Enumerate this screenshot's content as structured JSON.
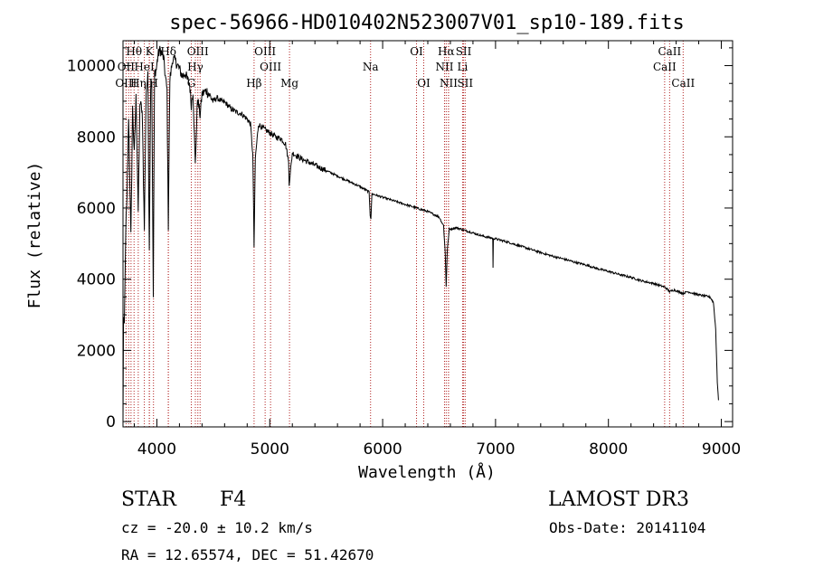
{
  "chart_data": {
    "type": "line",
    "title": "spec-56966-HD010402N523007V01_sp10-189.fits",
    "xlabel": "Wavelength (Å)",
    "ylabel": "Flux (relative)",
    "xlim": [
      3700,
      9100
    ],
    "ylim": [
      -150,
      10700
    ],
    "xticks": [
      4000,
      5000,
      6000,
      7000,
      8000,
      9000
    ],
    "yticks": [
      0,
      2000,
      4000,
      6000,
      8000,
      10000
    ],
    "grid": false,
    "series": [
      {
        "name": "spectrum",
        "anchors": [
          [
            3700,
            0
          ],
          [
            3705,
            3000
          ],
          [
            3712,
            2600
          ],
          [
            3725,
            5500
          ],
          [
            3735,
            6200
          ],
          [
            3750,
            8600
          ],
          [
            3770,
            5200
          ],
          [
            3785,
            8800
          ],
          [
            3800,
            7500
          ],
          [
            3815,
            9100
          ],
          [
            3835,
            5900
          ],
          [
            3850,
            9000
          ],
          [
            3870,
            8700
          ],
          [
            3889,
            5500
          ],
          [
            3905,
            9300
          ],
          [
            3920,
            9700
          ],
          [
            3933,
            4900
          ],
          [
            3945,
            9500
          ],
          [
            3955,
            9600
          ],
          [
            3968,
            3500
          ],
          [
            3980,
            9800
          ],
          [
            3995,
            9900
          ],
          [
            4010,
            10300
          ],
          [
            4030,
            10450
          ],
          [
            4060,
            10200
          ],
          [
            4075,
            9700
          ],
          [
            4090,
            9300
          ],
          [
            4101,
            5500
          ],
          [
            4115,
            9600
          ],
          [
            4140,
            10200
          ],
          [
            4170,
            10100
          ],
          [
            4200,
            9900
          ],
          [
            4226,
            9700
          ],
          [
            4250,
            9800
          ],
          [
            4270,
            9600
          ],
          [
            4290,
            9500
          ],
          [
            4305,
            8900
          ],
          [
            4320,
            9300
          ],
          [
            4340,
            7200
          ],
          [
            4360,
            9100
          ],
          [
            4383,
            8600
          ],
          [
            4400,
            9200
          ],
          [
            4440,
            9300
          ],
          [
            4480,
            9100
          ],
          [
            4500,
            9000
          ],
          [
            4530,
            9100
          ],
          [
            4570,
            9000
          ],
          [
            4610,
            8950
          ],
          [
            4650,
            8800
          ],
          [
            4700,
            8700
          ],
          [
            4750,
            8650
          ],
          [
            4800,
            8500
          ],
          [
            4830,
            8350
          ],
          [
            4850,
            7500
          ],
          [
            4861,
            4900
          ],
          [
            4872,
            7400
          ],
          [
            4900,
            8350
          ],
          [
            4920,
            8300
          ],
          [
            4957,
            8200
          ],
          [
            5007,
            8100
          ],
          [
            5050,
            8000
          ],
          [
            5100,
            7950
          ],
          [
            5140,
            7800
          ],
          [
            5167,
            7300
          ],
          [
            5172,
            6700
          ],
          [
            5183,
            7000
          ],
          [
            5200,
            7550
          ],
          [
            5270,
            7400
          ],
          [
            5300,
            7350
          ],
          [
            5400,
            7200
          ],
          [
            5500,
            7050
          ],
          [
            5600,
            6900
          ],
          [
            5700,
            6750
          ],
          [
            5800,
            6600
          ],
          [
            5880,
            6450
          ],
          [
            5890,
            5800
          ],
          [
            5896,
            5700
          ],
          [
            5905,
            6400
          ],
          [
            6000,
            6300
          ],
          [
            6100,
            6200
          ],
          [
            6200,
            6100
          ],
          [
            6300,
            6000
          ],
          [
            6400,
            5900
          ],
          [
            6500,
            5750
          ],
          [
            6540,
            5500
          ],
          [
            6555,
            4700
          ],
          [
            6563,
            3800
          ],
          [
            6572,
            4800
          ],
          [
            6590,
            5400
          ],
          [
            6650,
            5450
          ],
          [
            6700,
            5400
          ],
          [
            6750,
            5350
          ],
          [
            6800,
            5300
          ],
          [
            6900,
            5200
          ],
          [
            6975,
            5150
          ],
          [
            6978,
            4300
          ],
          [
            6981,
            5150
          ],
          [
            7100,
            5050
          ],
          [
            7200,
            4950
          ],
          [
            7300,
            4850
          ],
          [
            7400,
            4750
          ],
          [
            7500,
            4650
          ],
          [
            7600,
            4570
          ],
          [
            7700,
            4480
          ],
          [
            7800,
            4400
          ],
          [
            7900,
            4300
          ],
          [
            8000,
            4220
          ],
          [
            8100,
            4130
          ],
          [
            8200,
            4050
          ],
          [
            8300,
            3950
          ],
          [
            8400,
            3880
          ],
          [
            8498,
            3780
          ],
          [
            8510,
            3750
          ],
          [
            8542,
            3650
          ],
          [
            8580,
            3700
          ],
          [
            8662,
            3600
          ],
          [
            8700,
            3650
          ],
          [
            8800,
            3560
          ],
          [
            8900,
            3500
          ],
          [
            8930,
            3350
          ],
          [
            8950,
            2600
          ],
          [
            8965,
            1100
          ],
          [
            8975,
            600
          ]
        ]
      }
    ],
    "line_markers": [
      {
        "label": "Hθ",
        "wavelength": 3798,
        "row": 1
      },
      {
        "label": "OII",
        "wavelength": 3727,
        "row": 2
      },
      {
        "label": "OIII",
        "wavelength": 3727,
        "row": 3
      },
      {
        "label": "K",
        "wavelength": 3934,
        "row": 1
      },
      {
        "label": "Hδ",
        "wavelength": 4102,
        "row": 1
      },
      {
        "label": "HeI",
        "wavelength": 3889,
        "row": 2
      },
      {
        "label": "Hη",
        "wavelength": 3835,
        "row": 3
      },
      {
        "label": "H",
        "wavelength": 3970,
        "row": 3
      },
      {
        "label": "OIII",
        "wavelength": 4363,
        "row": 1
      },
      {
        "label": "Hγ",
        "wavelength": 4341,
        "row": 2
      },
      {
        "label": "G",
        "wavelength": 4305,
        "row": 3
      },
      {
        "label": "OIII",
        "wavelength": 4959,
        "row": 1
      },
      {
        "label": "OIII",
        "wavelength": 5007,
        "row": 2
      },
      {
        "label": "Hβ",
        "wavelength": 4861,
        "row": 3
      },
      {
        "label": "Mg",
        "wavelength": 5175,
        "row": 3
      },
      {
        "label": "Na",
        "wavelength": 5893,
        "row": 2
      },
      {
        "label": "OI",
        "wavelength": 6300,
        "row": 1
      },
      {
        "label": "OI",
        "wavelength": 6364,
        "row": 3
      },
      {
        "label": "Hα",
        "wavelength": 6563,
        "row": 1
      },
      {
        "label": "SII",
        "wavelength": 6717,
        "row": 1
      },
      {
        "label": "NII",
        "wavelength": 6548,
        "row": 2
      },
      {
        "label": "Li",
        "wavelength": 6708,
        "row": 2
      },
      {
        "label": "NII",
        "wavelength": 6584,
        "row": 3
      },
      {
        "label": "SII",
        "wavelength": 6731,
        "row": 3
      },
      {
        "label": "CaII",
        "wavelength": 8542,
        "row": 1
      },
      {
        "label": "CaII",
        "wavelength": 8498,
        "row": 2
      },
      {
        "label": "CaII",
        "wavelength": 8662,
        "row": 3
      }
    ],
    "extra_marker_lines": [
      3750,
      3771,
      3933,
      4101,
      4341,
      4383,
      4959,
      5007,
      6364,
      6583,
      6717,
      6731,
      8498,
      8662
    ]
  },
  "info": {
    "object_type": "STAR",
    "subclass": "F4",
    "survey": "LAMOST DR3",
    "redshift_line": "cz = -20.0 ± 10.2 km/s",
    "obs_date": "Obs-Date: 20141104",
    "coords": "RA =  12.65574, DEC =  51.42670"
  },
  "colors": {
    "spectrum": "#000000",
    "marker_line": "#b22222",
    "axis": "#000000",
    "background": "#ffffff"
  }
}
